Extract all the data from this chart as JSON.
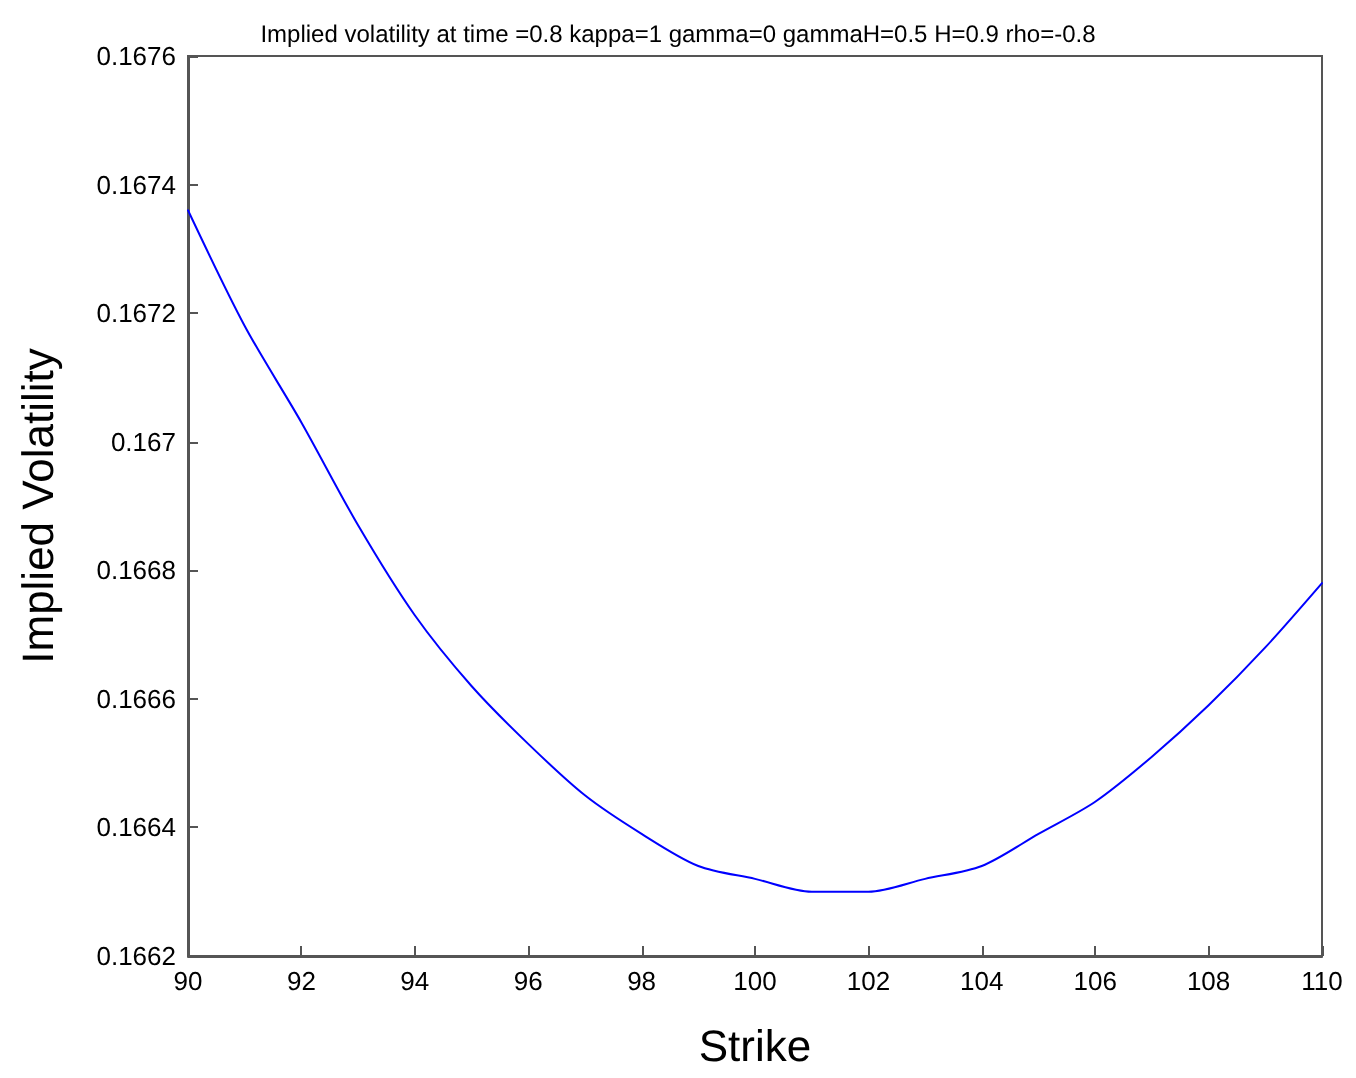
{
  "chart_data": {
    "type": "line",
    "title": "Implied volatility at time =0.8 kappa=1 gamma=0 gammaH=0.5 H=0.9 rho=-0.8",
    "xlabel": "Strike",
    "ylabel": "Implied Volatility",
    "series": [
      {
        "color": "#0000ff",
        "x": [
          90,
          91,
          92,
          93,
          94,
          95,
          96,
          97,
          98,
          99,
          100,
          101,
          102,
          103,
          104,
          105,
          106,
          107,
          108,
          109,
          110
        ],
        "values": [
          0.16736,
          0.16718,
          0.16703,
          0.16687,
          0.16673,
          0.16662,
          0.16653,
          0.16645,
          0.16639,
          0.16634,
          0.16632,
          0.1663,
          0.1663,
          0.16632,
          0.16634,
          0.16639,
          0.16644,
          0.16651,
          0.16659,
          0.16668,
          0.16678
        ]
      }
    ],
    "xlim": [
      90,
      110
    ],
    "xticks": [
      90,
      92,
      94,
      96,
      98,
      100,
      102,
      104,
      106,
      108,
      110
    ],
    "ylim": [
      0.1662,
      0.1676
    ],
    "yticks": [
      0.1662,
      0.1664,
      0.1666,
      0.1668,
      0.167,
      0.1672,
      0.1674,
      0.1676
    ],
    "marker": "none",
    "line_style": "solid"
  }
}
